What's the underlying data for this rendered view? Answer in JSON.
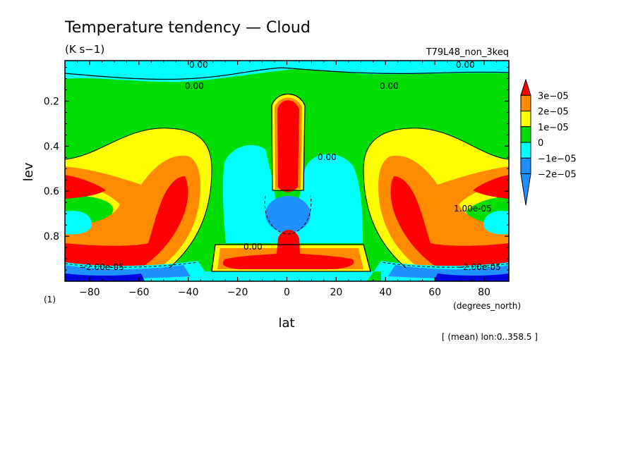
{
  "chart_data": {
    "type": "heatmap",
    "title": "Temperature tendency — Cloud",
    "units": "(K s−1)",
    "run_id": "T79L48_non_3keq",
    "xlabel": "lat",
    "x_units": "(degrees_north)",
    "ylabel": "lev",
    "y_units": "(1)",
    "footer": "[ (mean) lon:0..358.5 ]",
    "xlim": [
      -90,
      90
    ],
    "ylim": [
      1.0,
      0.02
    ],
    "x_ticks": [
      -80,
      -60,
      -40,
      -20,
      0,
      20,
      40,
      60,
      80
    ],
    "x_tick_labels": [
      "−80",
      "−60",
      "−40",
      "−20",
      "0",
      "20",
      "40",
      "60",
      "80"
    ],
    "y_ticks": [
      0.2,
      0.4,
      0.6,
      0.8
    ],
    "y_tick_labels": [
      "0.2",
      "0.4",
      "0.6",
      "0.8"
    ],
    "contour_labels": [
      "0.00",
      "0.00",
      "0.00",
      "0.00",
      "0.00",
      "0.00",
      "1.00e-05",
      "−2.00e-05",
      "−2.00e-05"
    ],
    "colorbar": {
      "levels": [
        "3e−05",
        "2e−05",
        "1e−05",
        "0",
        "−1e−05",
        "−2e−05"
      ],
      "colors": [
        "#ff0000",
        "#ff8c00",
        "#ffff00",
        "#00dd00",
        "#00ffff",
        "#1e90ff",
        "#0000e0"
      ]
    },
    "background_color": "#00dd00"
  }
}
